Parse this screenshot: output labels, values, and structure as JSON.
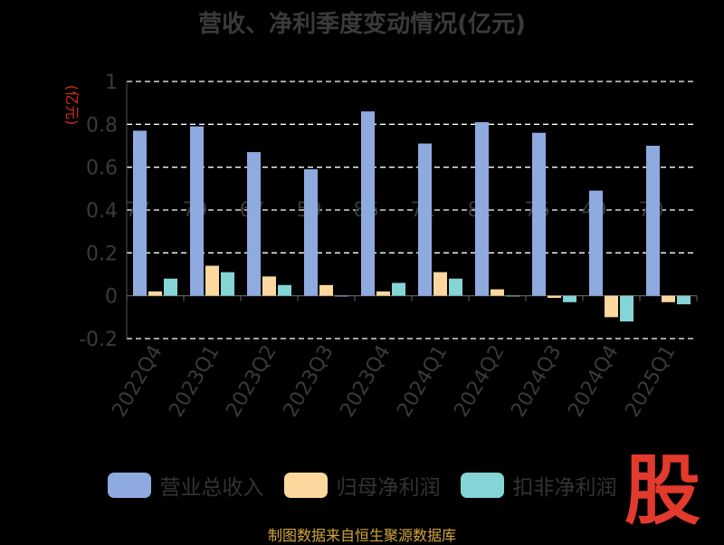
{
  "title": "营收、净利季度变动情况(亿元)",
  "footer": "制图数据来自恒生聚源数据库",
  "logo_text": "股",
  "chart_data": {
    "type": "bar",
    "ylabel": "(亿元)",
    "ylim": [
      -0.2,
      1
    ],
    "yticks": [
      -0.2,
      0,
      0.2,
      0.4,
      0.6,
      0.8,
      1
    ],
    "grid": true,
    "legend_position": "bottom",
    "categories": [
      "2022Q4",
      "2023Q1",
      "2023Q2",
      "2023Q3",
      "2023Q4",
      "2024Q1",
      "2024Q2",
      "2024Q3",
      "2024Q4",
      "2025Q1"
    ],
    "series": [
      {
        "name": "营业总收入",
        "color": "#8eaadf",
        "values": [
          0.77,
          0.79,
          0.67,
          0.59,
          0.86,
          0.71,
          0.81,
          0.76,
          0.49,
          0.7
        ],
        "data_labels": [
          "77",
          "79",
          "67",
          "59",
          "86",
          "71",
          "81",
          "76",
          "49",
          "70"
        ]
      },
      {
        "name": "归母净利润",
        "color": "#fdd89e",
        "values": [
          0.02,
          0.14,
          0.09,
          0.05,
          0.02,
          0.11,
          0.03,
          -0.01,
          -0.1,
          -0.03
        ]
      },
      {
        "name": "扣非净利润",
        "color": "#85d4d6",
        "values": [
          0.08,
          0.11,
          0.05,
          0.0,
          0.06,
          0.08,
          0.0,
          -0.03,
          -0.12,
          -0.04
        ]
      }
    ]
  }
}
